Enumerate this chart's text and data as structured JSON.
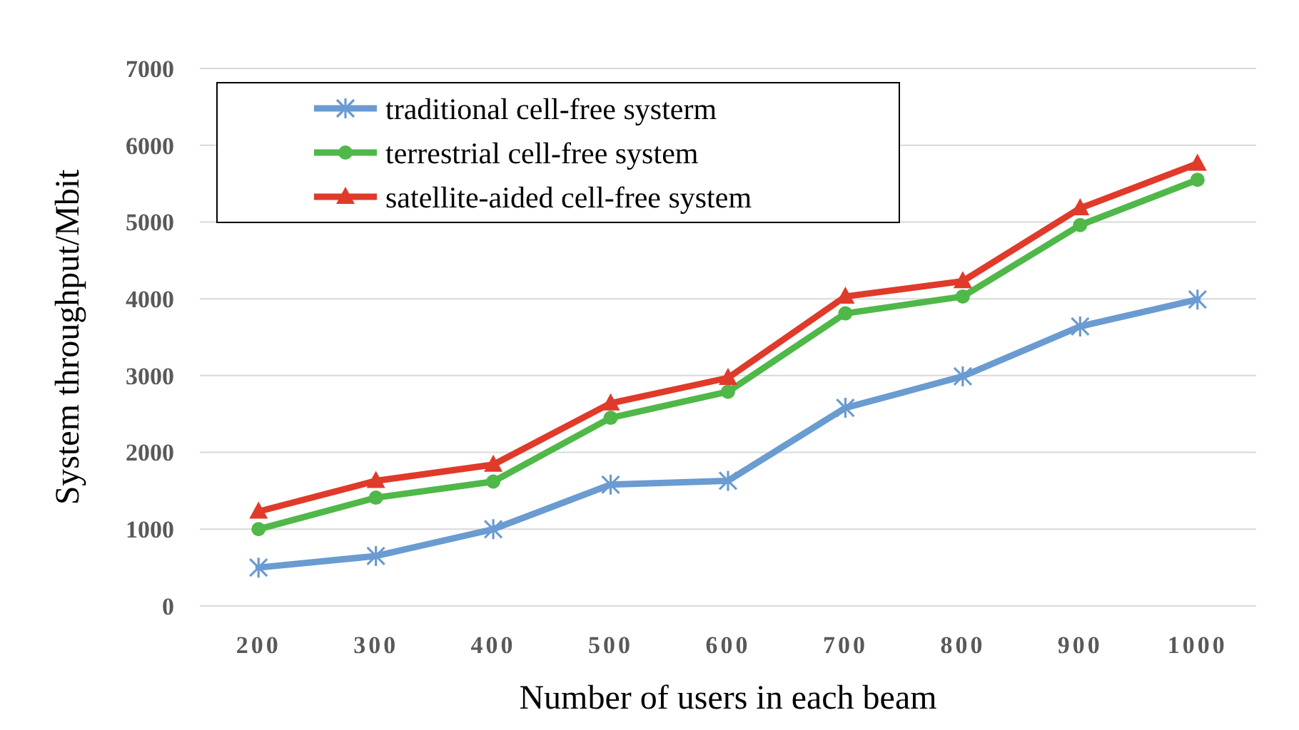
{
  "chart_data": {
    "type": "line",
    "xlabel": "Number of users in each beam",
    "ylabel": "System throughput/Mbit",
    "categories": [
      "200",
      "300",
      "400",
      "500",
      "600",
      "700",
      "800",
      "900",
      "1000"
    ],
    "series": [
      {
        "name": "traditional cell-free systerm",
        "color": "#6a9bd1",
        "marker": "cross",
        "values": [
          500,
          650,
          1000,
          1580,
          1630,
          2580,
          2990,
          3640,
          3990
        ]
      },
      {
        "name": "terrestrial cell-free system",
        "color": "#4fb848",
        "marker": "circle",
        "values": [
          1000,
          1410,
          1620,
          2450,
          2790,
          3810,
          4030,
          4960,
          5550
        ]
      },
      {
        "name": "satellite-aided cell-free system",
        "color": "#e03a2a",
        "marker": "triangle",
        "values": [
          1230,
          1630,
          1840,
          2640,
          2970,
          4030,
          4230,
          5180,
          5760
        ]
      }
    ],
    "ylim": [
      0,
      7000
    ],
    "yticks": [
      0,
      1000,
      2000,
      3000,
      4000,
      5000,
      6000,
      7000
    ],
    "grid": "y",
    "legend": "top left",
    "line_style": "solid"
  }
}
